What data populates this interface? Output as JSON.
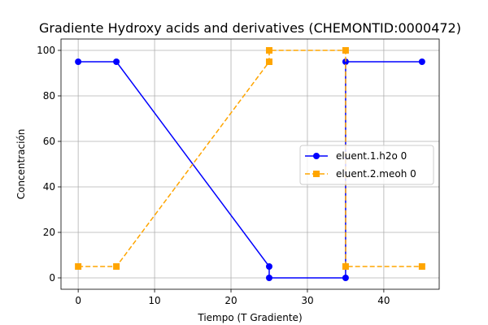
{
  "chart_data": {
    "type": "line",
    "title": "Gradiente Hydroxy acids and derivatives (CHEMONTID:0000472)",
    "xlabel": "Tiempo (T Gradiente)",
    "ylabel": "Concentración",
    "xlim": [
      -2.25,
      47.25
    ],
    "ylim": [
      -5,
      105
    ],
    "xticks": [
      0,
      10,
      20,
      30,
      40
    ],
    "yticks": [
      0,
      20,
      40,
      60,
      80,
      100
    ],
    "grid": true,
    "legend_position": "center-right",
    "series": [
      {
        "name": "eluent.1.h2o 0",
        "color": "#0000ff",
        "line_style": "solid",
        "marker": "circle",
        "x": [
          0,
          5,
          25,
          25,
          35,
          35,
          45
        ],
        "y": [
          95,
          95,
          5,
          0,
          0,
          95,
          95
        ]
      },
      {
        "name": "eluent.2.meoh 0",
        "color": "#ffa500",
        "line_style": "dashed",
        "marker": "square",
        "x": [
          0,
          5,
          25,
          25,
          35,
          35,
          45
        ],
        "y": [
          5,
          5,
          95,
          100,
          100,
          5,
          5
        ]
      }
    ]
  }
}
